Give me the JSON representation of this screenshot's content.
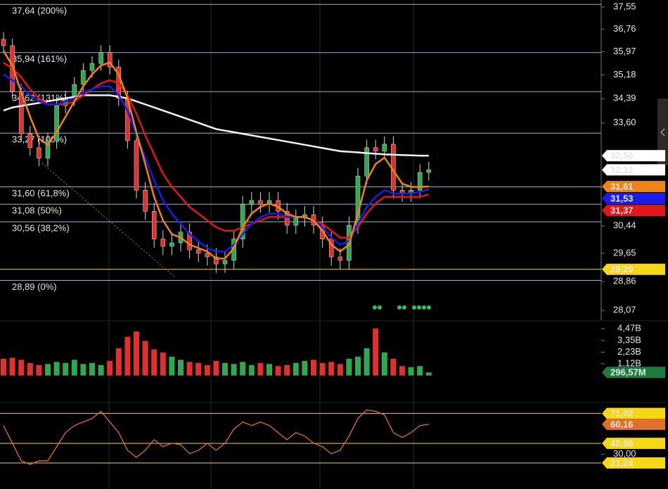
{
  "chart_data": [
    {
      "type": "candlestick",
      "log": true,
      "ylim": [
        27.81,
        37.8
      ],
      "up_color": "#2fa84f",
      "down_color": "#e2312d",
      "wick_color": "#d8d8d8",
      "yticks": [
        {
          "value": 37.55,
          "label": "37,55"
        },
        {
          "value": 36.76,
          "label": "36,76"
        },
        {
          "value": 35.97,
          "label": "35,97"
        },
        {
          "value": 35.18,
          "label": "35,18"
        },
        {
          "value": 34.39,
          "label": "34,39"
        },
        {
          "value": 33.6,
          "label": "33,60"
        },
        {
          "value": 30.44,
          "label": "30,44"
        },
        {
          "value": 29.65,
          "label": "29,65"
        },
        {
          "value": 28.86,
          "label": "28,86"
        },
        {
          "value": 28.07,
          "label": "28,07"
        }
      ],
      "open": [
        36.4,
        36.18,
        34.63,
        33.25,
        32.81,
        32.48,
        33.03,
        34.16,
        34.4,
        34.86,
        35.33,
        35.57,
        35.94,
        35.45,
        34.4,
        33.03,
        31.5,
        30.87,
        30.06,
        29.85,
        29.95,
        30.26,
        29.75,
        29.65,
        29.55,
        29.35,
        29.45,
        30.06,
        31.08,
        31.19,
        31.08,
        31.19,
        30.87,
        30.46,
        30.67,
        30.77,
        30.46,
        30.06,
        29.55,
        29.45,
        30.46,
        31.93,
        32.81,
        32.7,
        32.92,
        31.5,
        31.4,
        31.5,
        32.04
      ],
      "high": [
        36.65,
        36.43,
        34.88,
        33.5,
        33.06,
        33.28,
        34.41,
        34.65,
        35.11,
        35.58,
        35.82,
        36.19,
        36.19,
        35.7,
        34.65,
        33.28,
        31.75,
        31.12,
        30.31,
        30.2,
        30.51,
        30.51,
        30.0,
        29.9,
        29.8,
        29.7,
        30.31,
        31.33,
        31.44,
        31.44,
        31.44,
        31.44,
        31.12,
        30.92,
        31.02,
        31.02,
        30.71,
        30.31,
        29.8,
        30.71,
        32.18,
        33.06,
        33.06,
        33.17,
        33.17,
        31.75,
        31.75,
        32.29,
        32.37
      ],
      "low": [
        35.93,
        34.38,
        33.0,
        32.56,
        32.23,
        32.23,
        32.78,
        33.91,
        34.15,
        34.61,
        35.08,
        35.32,
        35.2,
        34.15,
        32.78,
        31.25,
        30.62,
        29.81,
        29.6,
        29.6,
        29.7,
        29.5,
        29.4,
        29.3,
        29.1,
        29.1,
        29.2,
        29.81,
        30.83,
        30.83,
        30.83,
        30.62,
        30.21,
        30.21,
        30.42,
        30.21,
        29.81,
        29.3,
        29.2,
        29.2,
        30.21,
        31.68,
        32.45,
        32.45,
        31.25,
        31.15,
        31.15,
        31.25,
        31.79
      ],
      "close": [
        36.18,
        34.63,
        33.25,
        32.81,
        32.48,
        33.03,
        34.16,
        34.4,
        34.86,
        35.33,
        35.57,
        35.94,
        35.45,
        34.4,
        33.03,
        31.5,
        30.87,
        30.06,
        29.85,
        29.95,
        30.26,
        29.75,
        29.65,
        29.55,
        29.35,
        29.45,
        30.06,
        31.08,
        31.19,
        31.08,
        31.19,
        30.87,
        30.46,
        30.67,
        30.77,
        30.46,
        30.06,
        29.55,
        29.45,
        30.46,
        31.93,
        32.81,
        32.7,
        32.92,
        31.5,
        31.4,
        31.5,
        32.04,
        32.12
      ],
      "series": [
        {
          "color": "#f2f2f2",
          "values": [
            34.0,
            34.1,
            34.15,
            34.2,
            34.25,
            34.3,
            34.35,
            34.4,
            34.45,
            34.5,
            34.5,
            34.5,
            34.5,
            34.45,
            34.4,
            34.3,
            34.2,
            34.1,
            34.0,
            33.9,
            33.8,
            33.7,
            33.6,
            33.5,
            33.4,
            33.35,
            33.3,
            33.25,
            33.2,
            33.15,
            33.1,
            33.05,
            33.0,
            32.95,
            32.9,
            32.85,
            32.8,
            32.75,
            32.7,
            32.68,
            32.66,
            32.64,
            32.62,
            32.6,
            32.59,
            32.58,
            32.57,
            32.56,
            32.56
          ]
        },
        {
          "color": "#e01818",
          "values": [
            35.6,
            35.4,
            35.1,
            34.7,
            34.4,
            34.2,
            34.2,
            34.2,
            34.3,
            34.5,
            34.7,
            34.9,
            35.0,
            34.9,
            34.5,
            33.9,
            33.2,
            32.6,
            32.0,
            31.6,
            31.3,
            31.0,
            30.8,
            30.6,
            30.4,
            30.3,
            30.3,
            30.4,
            30.5,
            30.6,
            30.7,
            30.7,
            30.7,
            30.7,
            30.7,
            30.6,
            30.5,
            30.3,
            30.1,
            30.1,
            30.4,
            30.8,
            31.1,
            31.3,
            31.3,
            31.3,
            31.3,
            31.3,
            31.37
          ]
        },
        {
          "color": "#1c1ce8",
          "values": [
            35.2,
            35.0,
            34.8,
            34.5,
            34.3,
            34.2,
            34.2,
            34.3,
            34.4,
            34.6,
            34.7,
            34.8,
            34.8,
            34.5,
            34.0,
            33.2,
            32.5,
            31.8,
            31.2,
            30.8,
            30.5,
            30.2,
            30.0,
            29.8,
            29.7,
            29.7,
            29.9,
            30.2,
            30.5,
            30.7,
            30.8,
            30.8,
            30.7,
            30.7,
            30.7,
            30.6,
            30.4,
            30.1,
            29.9,
            30.0,
            30.5,
            31.0,
            31.3,
            31.5,
            31.4,
            31.4,
            31.4,
            31.45,
            31.53
          ]
        },
        {
          "color": "#f08418",
          "values": [
            36.0,
            35.5,
            34.6,
            33.8,
            33.1,
            32.9,
            33.3,
            33.8,
            34.3,
            34.8,
            35.2,
            35.5,
            35.6,
            35.2,
            34.4,
            33.3,
            32.3,
            31.3,
            30.6,
            30.2,
            30.1,
            29.9,
            29.8,
            29.7,
            29.5,
            29.5,
            29.8,
            30.4,
            30.8,
            31.0,
            31.1,
            31.0,
            30.8,
            30.7,
            30.7,
            30.6,
            30.3,
            29.9,
            29.7,
            29.9,
            30.8,
            31.8,
            32.3,
            32.5,
            32.1,
            31.7,
            31.6,
            31.6,
            31.61
          ]
        }
      ],
      "fib_color": "#9fb0d0",
      "fib_levels": [
        {
          "value": 37.64,
          "label": "37,64 (200%)"
        },
        {
          "value": 35.94,
          "label": "35,94 (161%)"
        },
        {
          "value": 34.62,
          "label": "34,62 (131%)"
        },
        {
          "value": 33.27,
          "label": "33,27 (100%)"
        },
        {
          "value": 31.6,
          "label": "31,60 (61,8%)"
        },
        {
          "value": 31.08,
          "label": "31,08 (50%)"
        },
        {
          "value": 30.56,
          "label": "30,56 (38,2%)"
        },
        {
          "value": 28.89,
          "label": "28,89 (0%)"
        }
      ],
      "price_tags": [
        {
          "value": 32.56,
          "label": "32,56",
          "color": "#ffffff",
          "text_color": "#000000"
        },
        {
          "value": 32.12,
          "label": "32,12",
          "color": "#ffffff",
          "text_color": "#000000"
        },
        {
          "value": 31.61,
          "label": "31,61",
          "color": "#f08418",
          "text_color": "#ffffff"
        },
        {
          "value": 31.53,
          "label": "31,53",
          "color": "#1c1ce8",
          "text_color": "#ffffff"
        },
        {
          "value": 31.37,
          "label": "31,37",
          "color": "#e01818",
          "text_color": "#ffffff"
        },
        {
          "value": 29.2,
          "label": "29,20",
          "color": "#f5d716",
          "text_color": "#000000",
          "line": true
        }
      ]
    },
    {
      "type": "bar",
      "ylim": [
        0,
        4.95
      ],
      "yticks": [
        {
          "value": 4.47,
          "label": "4,47B"
        },
        {
          "value": 3.35,
          "label": "3,35B"
        },
        {
          "value": 2.23,
          "label": "2,23B"
        },
        {
          "value": 1.12,
          "label": "1,12B"
        }
      ],
      "values": [
        1.6,
        1.7,
        1.5,
        1.2,
        1.0,
        1.1,
        1.3,
        1.2,
        1.5,
        1.1,
        1.2,
        1.0,
        1.4,
        2.6,
        3.7,
        4.2,
        3.3,
        2.5,
        2.2,
        1.8,
        1.5,
        1.3,
        1.2,
        1.0,
        1.4,
        1.2,
        1.1,
        1.3,
        1.0,
        1.2,
        1.1,
        0.9,
        1.0,
        1.2,
        1.4,
        1.5,
        1.2,
        1.3,
        1.1,
        1.6,
        1.8,
        2.6,
        4.5,
        2.2,
        1.6,
        0.9,
        0.8,
        0.9,
        0.29657
      ],
      "last_tag": {
        "value": 0.29657,
        "label": "296,57M",
        "color": "#1e7a3e",
        "text_color": "#ffffff"
      }
    },
    {
      "type": "line",
      "ylim": [
        0,
        80
      ],
      "color": "#d8742a",
      "values": [
        58.9,
        41.1,
        23.4,
        19.8,
        23.4,
        23.4,
        37.6,
        51.8,
        58.9,
        62.5,
        66.0,
        73.2,
        62.5,
        51.8,
        34.0,
        26.9,
        34.0,
        44.7,
        37.6,
        41.1,
        39.7,
        30.5,
        34.0,
        41.1,
        34.0,
        41.1,
        55.4,
        62.5,
        58.9,
        62.5,
        58.9,
        51.8,
        44.7,
        51.8,
        48.3,
        41.1,
        37.6,
        30.5,
        34.0,
        48.3,
        66.0,
        74.6,
        73.2,
        69.6,
        51.8,
        46.9,
        51.8,
        58.9,
        60.16
      ],
      "yticks": [
        {
          "value": 30,
          "label": "30,00"
        }
      ],
      "levels": [
        {
          "value": 71.02,
          "label": "71,02",
          "color": "#f5d716",
          "text_color": "#000000"
        },
        {
          "value": 40.96,
          "label": "40,96",
          "color": "#f5d716",
          "text_color": "#000000"
        },
        {
          "value": 21.24,
          "label": "21,24",
          "color": "#f5d716",
          "text_color": "#000000"
        }
      ],
      "last_tag": {
        "value": 60.16,
        "label": "60,16",
        "color": "#e0702a",
        "text_color": "#ffffff"
      }
    }
  ]
}
